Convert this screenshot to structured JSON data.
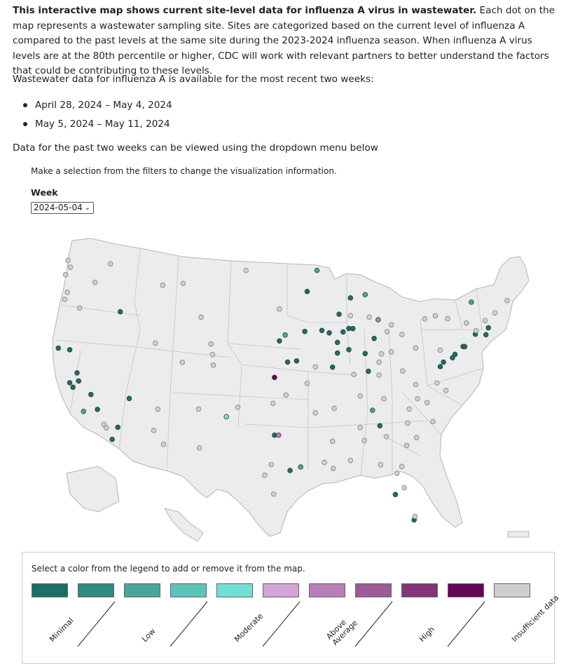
{
  "intro": {
    "bold": "This interactive map shows current site-level data for influenza A virus in wastewater.",
    "rest": " Each dot on the map represents a wastewater sampling site. Sites are categorized based on the current level of influenza A compared to the past levels at the same site during the 2023-2024 influenza season. When influenza A virus levels are at the 80th percentile or higher, CDC will work with relevant partners to better understand the factors that could be contributing to these levels."
  },
  "availability_text": "Wastewater data for influenza A is available for the most recent two weeks:",
  "weeks": [
    "April 28, 2024 – May 4, 2024",
    "May 5, 2024 – May 11, 2024"
  ],
  "dropdown_hint": "Data for the past two weeks can be viewed using the dropdown menu below",
  "filters": {
    "note": "Make a selection from the filters to change the visualization information.",
    "week_label": "Week",
    "week_value": "2024-05-04",
    "chevron_icon": "chevron-down-icon"
  },
  "legend": {
    "note": "Select a color from the legend to add or remove it from the map.",
    "items": [
      {
        "label": "Minimal",
        "color": "#1a6f68"
      },
      {
        "label": "",
        "color": "#2f8a80"
      },
      {
        "label": "Low",
        "color": "#46a69c"
      },
      {
        "label": "",
        "color": "#5cc3b9"
      },
      {
        "label": "Moderate",
        "color": "#6fe0d4"
      },
      {
        "label": "",
        "color": "#d4a3d8"
      },
      {
        "label": "Above Average",
        "color": "#b97db9"
      },
      {
        "label": "",
        "color": "#9f5a99"
      },
      {
        "label": "High",
        "color": "#823578"
      },
      {
        "label": "",
        "color": "#650656"
      },
      {
        "label": "Insufficient data",
        "color": "#cfcfcf"
      }
    ]
  },
  "map": {
    "land_color": "#ececec",
    "border_color": "#b5b5b5",
    "sites": [
      {
        "lon": -122.3,
        "lat": 47.6,
        "level": "insufficient"
      },
      {
        "lon": -122.6,
        "lat": 48.2,
        "level": "insufficient"
      },
      {
        "lon": -122.9,
        "lat": 47.0,
        "level": "insufficient"
      },
      {
        "lon": -122.7,
        "lat": 45.5,
        "level": "insufficient"
      },
      {
        "lon": -123.0,
        "lat": 44.9,
        "level": "insufficient"
      },
      {
        "lon": -117.4,
        "lat": 47.7,
        "level": "insufficient"
      },
      {
        "lon": -119.3,
        "lat": 46.2,
        "level": "insufficient"
      },
      {
        "lon": -121.2,
        "lat": 44.1,
        "level": "insufficient"
      },
      {
        "lon": -116.2,
        "lat": 43.6,
        "level": "minimal"
      },
      {
        "lon": -111.9,
        "lat": 40.8,
        "level": "insufficient"
      },
      {
        "lon": -111.0,
        "lat": 45.7,
        "level": "insufficient"
      },
      {
        "lon": -108.5,
        "lat": 45.8,
        "level": "insufficient"
      },
      {
        "lon": -106.3,
        "lat": 42.9,
        "level": "insufficient"
      },
      {
        "lon": -122.4,
        "lat": 37.8,
        "level": "minimal"
      },
      {
        "lon": -122.0,
        "lat": 37.4,
        "level": "minimal"
      },
      {
        "lon": -121.5,
        "lat": 38.6,
        "level": "minimal"
      },
      {
        "lon": -121.3,
        "lat": 37.9,
        "level": "minimal"
      },
      {
        "lon": -119.8,
        "lat": 36.7,
        "level": "minimal"
      },
      {
        "lon": -119.0,
        "lat": 35.4,
        "level": "minimal"
      },
      {
        "lon": -118.2,
        "lat": 34.1,
        "level": "insufficient"
      },
      {
        "lon": -117.9,
        "lat": 33.8,
        "level": "insufficient"
      },
      {
        "lon": -117.2,
        "lat": 32.8,
        "level": "minimal"
      },
      {
        "lon": -116.5,
        "lat": 33.8,
        "level": "minimal"
      },
      {
        "lon": -120.7,
        "lat": 35.3,
        "level": "low"
      },
      {
        "lon": -123.8,
        "lat": 40.8,
        "level": "minimal"
      },
      {
        "lon": -122.4,
        "lat": 40.6,
        "level": "minimal"
      },
      {
        "lon": -115.1,
        "lat": 36.2,
        "level": "minimal"
      },
      {
        "lon": -112.1,
        "lat": 33.4,
        "level": "insufficient"
      },
      {
        "lon": -110.9,
        "lat": 32.2,
        "level": "insufficient"
      },
      {
        "lon": -111.6,
        "lat": 35.2,
        "level": "insufficient"
      },
      {
        "lon": -106.6,
        "lat": 35.1,
        "level": "insufficient"
      },
      {
        "lon": -106.5,
        "lat": 31.8,
        "level": "insufficient"
      },
      {
        "lon": -103.2,
        "lat": 34.4,
        "level": "moderate"
      },
      {
        "lon": -104.9,
        "lat": 39.7,
        "level": "insufficient"
      },
      {
        "lon": -105.1,
        "lat": 40.6,
        "level": "insufficient"
      },
      {
        "lon": -104.8,
        "lat": 38.8,
        "level": "insufficient"
      },
      {
        "lon": -108.6,
        "lat": 39.1,
        "level": "insufficient"
      },
      {
        "lon": -101.8,
        "lat": 35.2,
        "level": "insufficient"
      },
      {
        "lon": -97.3,
        "lat": 32.8,
        "level": "minimal"
      },
      {
        "lon": -96.8,
        "lat": 32.8,
        "level": "above"
      },
      {
        "lon": -97.7,
        "lat": 30.3,
        "level": "insufficient"
      },
      {
        "lon": -98.5,
        "lat": 29.4,
        "level": "insufficient"
      },
      {
        "lon": -95.4,
        "lat": 29.8,
        "level": "minimal"
      },
      {
        "lon": -94.1,
        "lat": 30.1,
        "level": "low"
      },
      {
        "lon": -97.4,
        "lat": 27.8,
        "level": "insufficient"
      },
      {
        "lon": -97.5,
        "lat": 35.5,
        "level": "insufficient"
      },
      {
        "lon": -95.9,
        "lat": 36.2,
        "level": "insufficient"
      },
      {
        "lon": -97.3,
        "lat": 37.7,
        "level": "high"
      },
      {
        "lon": -95.7,
        "lat": 39.0,
        "level": "minimal"
      },
      {
        "lon": -94.6,
        "lat": 39.1,
        "level": "minimal"
      },
      {
        "lon": -96.0,
        "lat": 41.3,
        "level": "low"
      },
      {
        "lon": -96.7,
        "lat": 40.8,
        "level": "minimal"
      },
      {
        "lon": -96.7,
        "lat": 43.5,
        "level": "insufficient"
      },
      {
        "lon": -100.8,
        "lat": 46.8,
        "level": "insufficient"
      },
      {
        "lon": -93.3,
        "lat": 45.0,
        "level": "minimal"
      },
      {
        "lon": -92.1,
        "lat": 46.8,
        "level": "low"
      },
      {
        "lon": -93.6,
        "lat": 41.6,
        "level": "minimal"
      },
      {
        "lon": -91.5,
        "lat": 41.7,
        "level": "minimal"
      },
      {
        "lon": -90.6,
        "lat": 41.5,
        "level": "minimal"
      },
      {
        "lon": -89.6,
        "lat": 40.7,
        "level": "minimal"
      },
      {
        "lon": -88.9,
        "lat": 41.6,
        "level": "minimal"
      },
      {
        "lon": -88.2,
        "lat": 41.9,
        "level": "minimal"
      },
      {
        "lon": -87.7,
        "lat": 41.9,
        "level": "minimal"
      },
      {
        "lon": -88.0,
        "lat": 43.0,
        "level": "insufficient"
      },
      {
        "lon": -89.4,
        "lat": 43.1,
        "level": "minimal"
      },
      {
        "lon": -88.0,
        "lat": 44.5,
        "level": "minimal"
      },
      {
        "lon": -89.6,
        "lat": 39.8,
        "level": "minimal"
      },
      {
        "lon": -88.2,
        "lat": 40.1,
        "level": "minimal"
      },
      {
        "lon": -90.2,
        "lat": 38.6,
        "level": "minimal"
      },
      {
        "lon": -92.3,
        "lat": 38.6,
        "level": "insufficient"
      },
      {
        "lon": -93.3,
        "lat": 37.2,
        "level": "insufficient"
      },
      {
        "lon": -86.2,
        "lat": 39.8,
        "level": "minimal"
      },
      {
        "lon": -85.1,
        "lat": 41.1,
        "level": "minimal"
      },
      {
        "lon": -87.6,
        "lat": 38.0,
        "level": "insufficient"
      },
      {
        "lon": -85.8,
        "lat": 38.3,
        "level": "minimal"
      },
      {
        "lon": -84.5,
        "lat": 39.1,
        "level": "insufficient"
      },
      {
        "lon": -83.0,
        "lat": 40.0,
        "level": "insufficient"
      },
      {
        "lon": -81.7,
        "lat": 41.5,
        "level": "insufficient"
      },
      {
        "lon": -83.5,
        "lat": 41.7,
        "level": "insufficient"
      },
      {
        "lon": -84.2,
        "lat": 39.8,
        "level": "insufficient"
      },
      {
        "lon": -83.0,
        "lat": 42.3,
        "level": "insufficient"
      },
      {
        "lon": -84.6,
        "lat": 42.7,
        "level": "above"
      },
      {
        "lon": -85.7,
        "lat": 42.9,
        "level": "insufficient"
      },
      {
        "lon": -86.2,
        "lat": 44.8,
        "level": "low"
      },
      {
        "lon": -80.0,
        "lat": 40.4,
        "level": "insufficient"
      },
      {
        "lon": -77.0,
        "lat": 40.3,
        "level": "insufficient"
      },
      {
        "lon": -75.2,
        "lat": 40.0,
        "level": "minimal"
      },
      {
        "lon": -75.5,
        "lat": 39.7,
        "level": "minimal"
      },
      {
        "lon": -74.2,
        "lat": 40.7,
        "level": "minimal"
      },
      {
        "lon": -74.0,
        "lat": 40.7,
        "level": "minimal"
      },
      {
        "lon": -73.8,
        "lat": 42.7,
        "level": "insufficient"
      },
      {
        "lon": -76.1,
        "lat": 43.0,
        "level": "insufficient"
      },
      {
        "lon": -78.9,
        "lat": 42.9,
        "level": "insufficient"
      },
      {
        "lon": -77.6,
        "lat": 43.2,
        "level": "insufficient"
      },
      {
        "lon": -72.7,
        "lat": 41.8,
        "level": "minimal"
      },
      {
        "lon": -71.4,
        "lat": 41.8,
        "level": "minimal"
      },
      {
        "lon": -71.1,
        "lat": 42.4,
        "level": "minimal"
      },
      {
        "lon": -72.6,
        "lat": 42.1,
        "level": "insufficient"
      },
      {
        "lon": -71.5,
        "lat": 43.0,
        "level": "insufficient"
      },
      {
        "lon": -70.3,
        "lat": 43.7,
        "level": "insufficient"
      },
      {
        "lon": -68.8,
        "lat": 44.8,
        "level": "insufficient"
      },
      {
        "lon": -73.2,
        "lat": 44.5,
        "level": "low"
      },
      {
        "lon": -77.0,
        "lat": 38.9,
        "level": "minimal"
      },
      {
        "lon": -76.6,
        "lat": 39.3,
        "level": "minimal"
      },
      {
        "lon": -77.4,
        "lat": 37.5,
        "level": "insufficient"
      },
      {
        "lon": -76.3,
        "lat": 36.9,
        "level": "insufficient"
      },
      {
        "lon": -80.0,
        "lat": 37.3,
        "level": "insufficient"
      },
      {
        "lon": -81.6,
        "lat": 38.4,
        "level": "insufficient"
      },
      {
        "lon": -78.6,
        "lat": 35.8,
        "level": "insufficient"
      },
      {
        "lon": -80.8,
        "lat": 35.2,
        "level": "insufficient"
      },
      {
        "lon": -79.8,
        "lat": 36.1,
        "level": "insufficient"
      },
      {
        "lon": -77.9,
        "lat": 34.2,
        "level": "insufficient"
      },
      {
        "lon": -81.0,
        "lat": 34.0,
        "level": "insufficient"
      },
      {
        "lon": -79.9,
        "lat": 32.8,
        "level": "insufficient"
      },
      {
        "lon": -84.4,
        "lat": 33.7,
        "level": "minimal"
      },
      {
        "lon": -83.6,
        "lat": 32.8,
        "level": "insufficient"
      },
      {
        "lon": -81.1,
        "lat": 32.1,
        "level": "insufficient"
      },
      {
        "lon": -86.8,
        "lat": 33.5,
        "level": "insufficient"
      },
      {
        "lon": -86.3,
        "lat": 32.4,
        "level": "insufficient"
      },
      {
        "lon": -88.0,
        "lat": 30.7,
        "level": "insufficient"
      },
      {
        "lon": -90.2,
        "lat": 32.3,
        "level": "insufficient"
      },
      {
        "lon": -90.1,
        "lat": 30.0,
        "level": "insufficient"
      },
      {
        "lon": -91.2,
        "lat": 30.5,
        "level": "insufficient"
      },
      {
        "lon": -92.3,
        "lat": 34.7,
        "level": "insufficient"
      },
      {
        "lon": -90.0,
        "lat": 35.1,
        "level": "insufficient"
      },
      {
        "lon": -86.8,
        "lat": 36.2,
        "level": "insufficient"
      },
      {
        "lon": -85.3,
        "lat": 35.0,
        "level": "low"
      },
      {
        "lon": -83.9,
        "lat": 36.0,
        "level": "insufficient"
      },
      {
        "lon": -84.5,
        "lat": 38.0,
        "level": "insufficient"
      },
      {
        "lon": -81.4,
        "lat": 28.5,
        "level": "insufficient"
      },
      {
        "lon": -82.5,
        "lat": 27.9,
        "level": "minimal"
      },
      {
        "lon": -80.2,
        "lat": 25.8,
        "level": "minimal"
      },
      {
        "lon": -80.1,
        "lat": 26.1,
        "level": "insufficient"
      },
      {
        "lon": -81.7,
        "lat": 30.3,
        "level": "insufficient"
      },
      {
        "lon": -84.3,
        "lat": 30.4,
        "level": "insufficient"
      },
      {
        "lon": -82.3,
        "lat": 29.7,
        "level": "insufficient"
      }
    ]
  }
}
